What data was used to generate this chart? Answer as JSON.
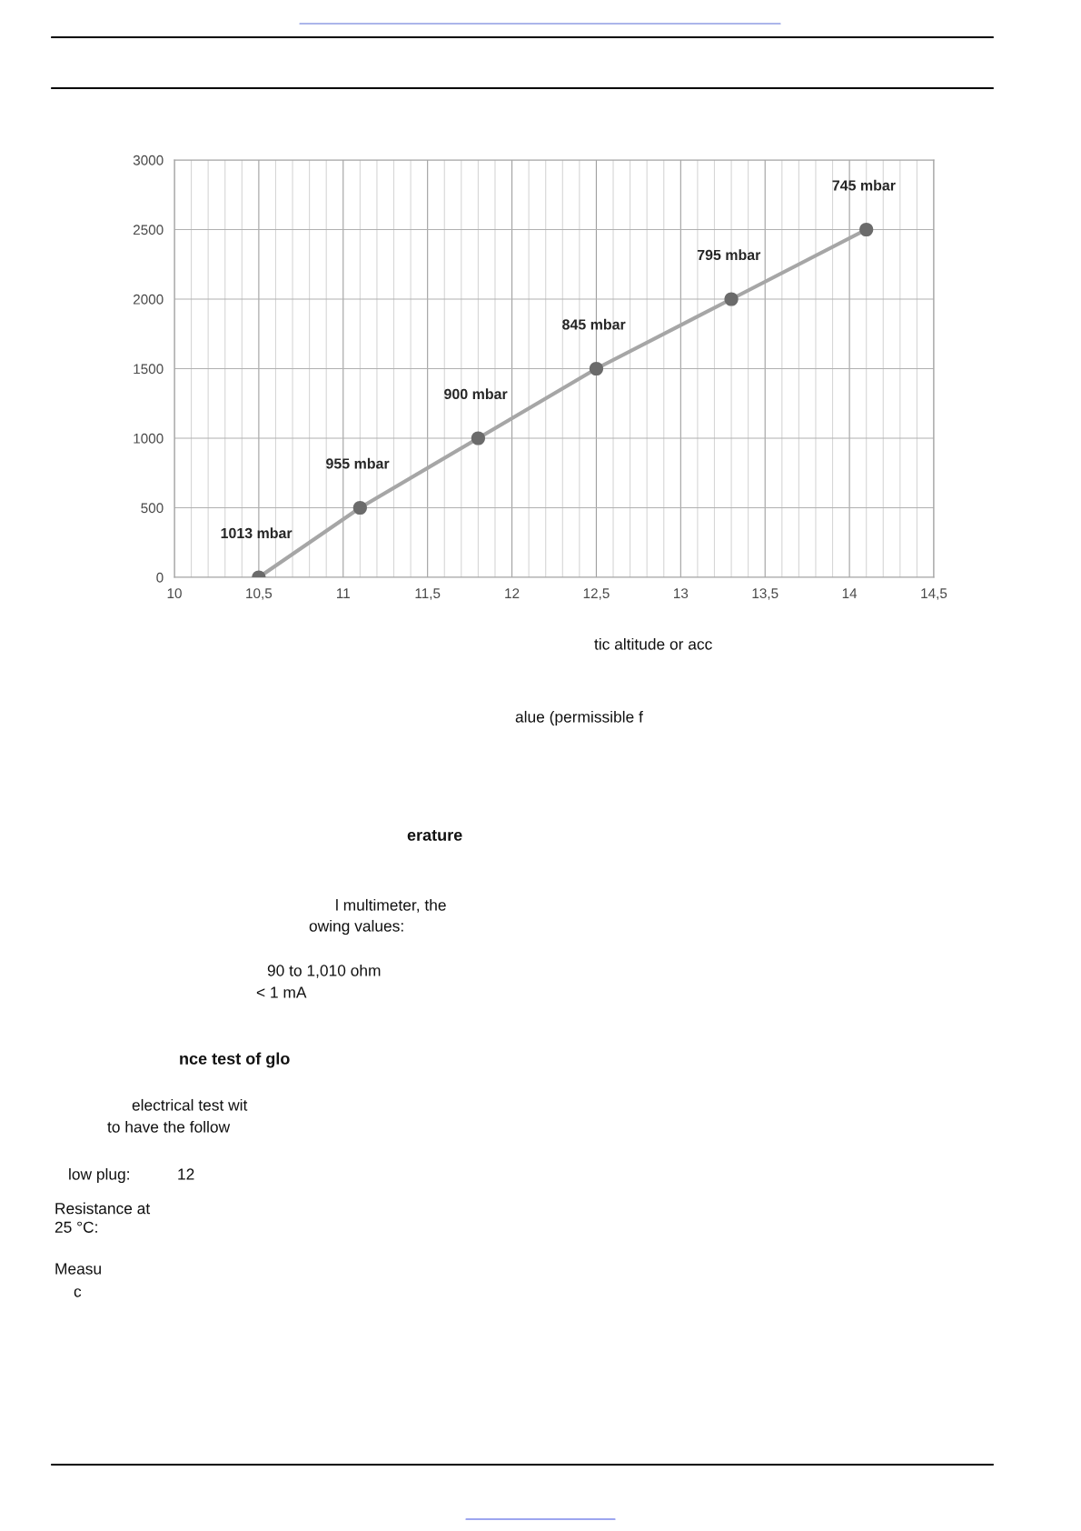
{
  "chart_data": {
    "type": "line",
    "x": [
      10.5,
      11.1,
      11.8,
      12.5,
      13.3,
      14.1
    ],
    "series": [
      {
        "color": "#a6a6a6",
        "colors": [
          "#6b6b6b",
          "#6b6b6b",
          "#6b6b6b",
          "#6b6b6b",
          "#6b6b6b",
          "#6b6b6b"
        ],
        "values": [
          0,
          500,
          1000,
          1500,
          2000,
          2500
        ]
      }
    ],
    "xlim": [
      10,
      14.5
    ],
    "ylim": [
      0,
      3000
    ],
    "xticks": [
      10,
      {
        "value": 10.1,
        "label": null
      },
      {
        "value": 10.2,
        "label": null
      },
      {
        "value": 10.3,
        "label": null
      },
      {
        "value": 10.4,
        "label": null
      },
      {
        "value": 10.5,
        "label": "10,5"
      },
      {
        "value": 10.6,
        "label": null
      },
      {
        "value": 10.7,
        "label": null
      },
      {
        "value": 10.8,
        "label": null
      },
      {
        "value": 10.9,
        "label": null
      },
      11,
      {
        "value": 11.1,
        "label": null
      },
      {
        "value": 11.2,
        "label": null
      },
      {
        "value": 11.3,
        "label": null
      },
      {
        "value": 11.4,
        "label": null
      },
      {
        "value": 11.5,
        "label": "11,5"
      },
      {
        "value": 11.6,
        "label": null
      },
      {
        "value": 11.7,
        "label": null
      },
      {
        "value": 11.8,
        "label": null
      },
      {
        "value": 11.9,
        "label": null
      },
      12,
      {
        "value": 12.1,
        "label": null
      },
      {
        "value": 12.2,
        "label": null
      },
      {
        "value": 12.3,
        "label": null
      },
      {
        "value": 12.4,
        "label": null
      },
      {
        "value": 12.5,
        "label": "12,5"
      },
      {
        "value": 12.6,
        "label": null
      },
      {
        "value": 12.7,
        "label": null
      },
      {
        "value": 12.8,
        "label": null
      },
      {
        "value": 12.9,
        "label": null
      },
      13,
      {
        "value": 13.1,
        "label": null
      },
      {
        "value": 13.2,
        "label": null
      },
      {
        "value": 13.3,
        "label": null
      },
      {
        "value": 13.4,
        "label": null
      },
      {
        "value": 13.5,
        "label": "13,5"
      },
      {
        "value": 13.6,
        "label": null
      },
      {
        "value": 13.7,
        "label": null
      },
      {
        "value": 13.8,
        "label": null
      },
      {
        "value": 13.9,
        "label": null
      },
      14,
      {
        "value": 14.1,
        "label": null
      },
      {
        "value": 14.2,
        "label": null
      },
      {
        "value": 14.3,
        "label": null
      },
      {
        "value": 14.4,
        "label": null
      },
      {
        "value": 14.5,
        "label": "14,5"
      }
    ],
    "yticks": [
      0,
      500,
      1000,
      1500,
      2000,
      2500,
      3000
    ],
    "grid": true,
    "marker": "circle",
    "line_style": "solid",
    "annotations": [
      {
        "text": "1013 mbar",
        "x": 10.5,
        "y": 0
      },
      {
        "text": "955 mbar",
        "x": 11.1,
        "y": 500
      },
      {
        "text": "900 mbar",
        "x": 11.8,
        "y": 1000
      },
      {
        "text": "845 mbar",
        "x": 12.5,
        "y": 1500
      },
      {
        "text": "795 mbar",
        "x": 13.3,
        "y": 2000
      },
      {
        "text": "745 mbar",
        "x": 14.1,
        "y": 2500
      },
      "tic altitude or acc",
      "alue (permissible f",
      "erature",
      "l multimeter, the",
      "owing values:",
      "90 to 1,010 ohm",
      "< 1 mA",
      "nce test of glo",
      "electrical test wit",
      "to have the follow",
      "low plug:",
      "12",
      "Resistance at\n25 °C:",
      "Measu",
      "c"
    ]
  }
}
